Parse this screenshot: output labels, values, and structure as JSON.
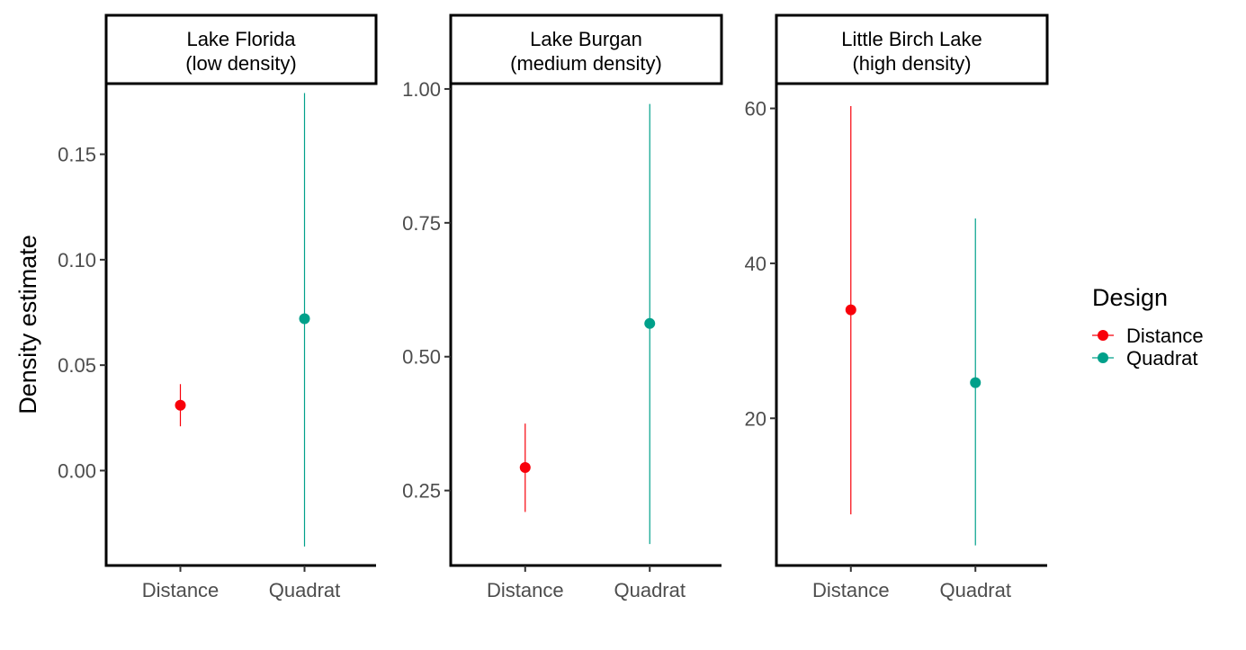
{
  "chart_data": {
    "type": "scatter",
    "ylabel": "Density estimate",
    "legend": {
      "title": "Design",
      "placement": "right",
      "entries": [
        {
          "name": "Distance",
          "color": "#F8000A"
        },
        {
          "name": "Quadrat",
          "color": "#00A08A"
        }
      ]
    },
    "categories": [
      "Distance",
      "Quadrat"
    ],
    "facets": [
      {
        "title_line1": "Lake Florida",
        "title_line2": "(low density)",
        "ylim": [
          -0.045,
          0.1835
        ],
        "yticks": [
          0.0,
          0.05,
          0.1,
          0.15
        ],
        "ytick_labels": [
          "0.00",
          "0.05",
          "0.10",
          "0.15"
        ],
        "points": [
          {
            "category": "Distance",
            "y": 0.031,
            "low": 0.021,
            "high": 0.041
          },
          {
            "category": "Quadrat",
            "y": 0.072,
            "low": -0.036,
            "high": 0.179
          }
        ]
      },
      {
        "title_line1": "Lake Burgan",
        "title_line2": "(medium density)",
        "ylim": [
          0.11,
          1.01
        ],
        "yticks": [
          0.25,
          0.5,
          0.75,
          1.0
        ],
        "ytick_labels": [
          "0.25",
          "0.50",
          "0.75",
          "1.00"
        ],
        "points": [
          {
            "category": "Distance",
            "y": 0.293,
            "low": 0.21,
            "high": 0.375
          },
          {
            "category": "Quadrat",
            "y": 0.562,
            "low": 0.15,
            "high": 0.972
          }
        ]
      },
      {
        "title_line1": "Little Birch Lake",
        "title_line2": "(high density)",
        "ylim": [
          1.0,
          63.2
        ],
        "yticks": [
          20,
          40,
          60
        ],
        "ytick_labels": [
          "20",
          "40",
          "60"
        ],
        "points": [
          {
            "category": "Distance",
            "y": 34.0,
            "low": 7.6,
            "high": 60.3
          },
          {
            "category": "Quadrat",
            "y": 24.6,
            "low": 3.6,
            "high": 45.8
          }
        ]
      }
    ]
  }
}
